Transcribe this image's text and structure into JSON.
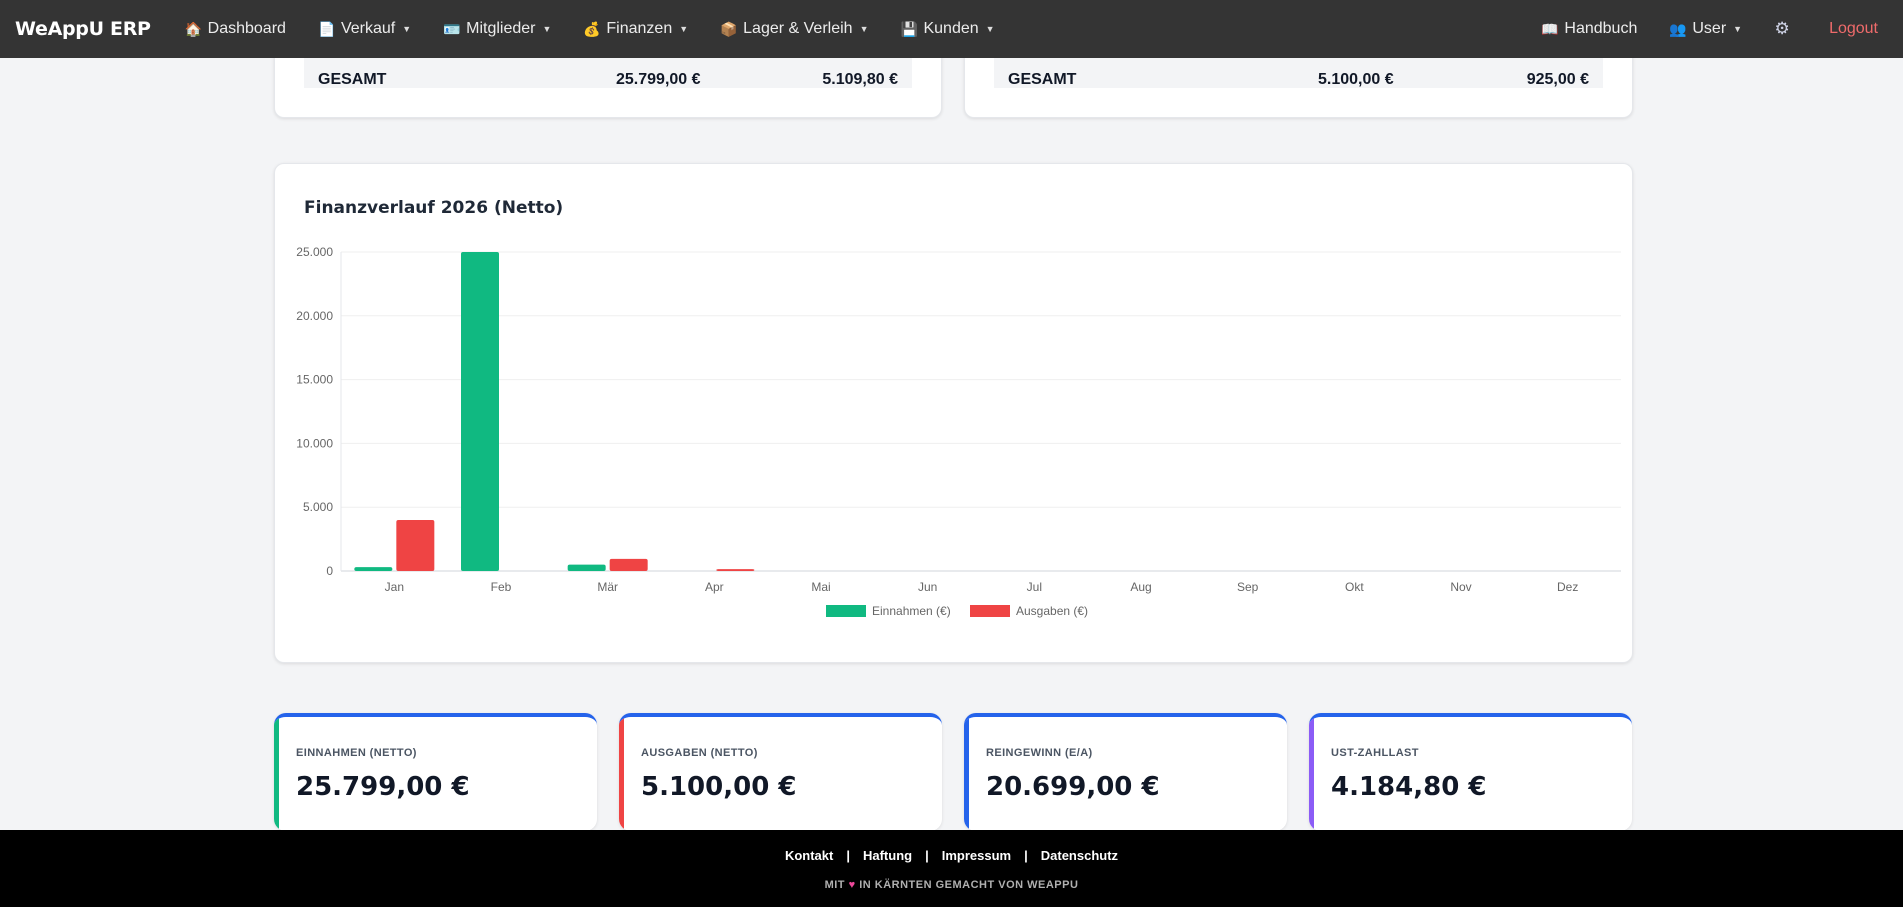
{
  "navbar": {
    "brand": "WeAppU ERP",
    "items": [
      {
        "icon": "home-icon",
        "glyph": "🏠",
        "label": "Dashboard",
        "dropdown": false
      },
      {
        "icon": "document-icon",
        "glyph": "📄",
        "label": "Verkauf",
        "dropdown": true
      },
      {
        "icon": "id-card-icon",
        "glyph": "🪪",
        "label": "Mitglieder",
        "dropdown": true
      },
      {
        "icon": "money-bag-icon",
        "glyph": "💰",
        "label": "Finanzen",
        "dropdown": true
      },
      {
        "icon": "package-icon",
        "glyph": "📦",
        "label": "Lager & Verleih",
        "dropdown": true
      },
      {
        "icon": "floppy-disk-icon",
        "glyph": "💾",
        "label": "Kunden",
        "dropdown": true
      }
    ],
    "handbuch": {
      "glyph": "📖",
      "label": "Handbuch"
    },
    "user": {
      "glyph": "👥",
      "label": "User"
    },
    "settings_glyph": "⚙",
    "logout": "Logout"
  },
  "top_cards": {
    "left": {
      "label": "GESAMT",
      "value1": "25.799,00 €",
      "value2": "5.109,80 €"
    },
    "right": {
      "label": "GESAMT",
      "value1": "5.100,00 €",
      "value2": "925,00 €"
    }
  },
  "chart_data": {
    "type": "bar",
    "title": "Finanzverlauf 2026 (Netto)",
    "categories": [
      "Jan",
      "Feb",
      "Mär",
      "Apr",
      "Mai",
      "Jun",
      "Jul",
      "Aug",
      "Sep",
      "Okt",
      "Nov",
      "Dez"
    ],
    "series": [
      {
        "name": "Einnahmen (€)",
        "color": "#10b981",
        "values": [
          300,
          25000,
          500,
          0,
          0,
          0,
          0,
          0,
          0,
          0,
          0,
          0
        ]
      },
      {
        "name": "Ausgaben (€)",
        "color": "#ef4444",
        "values": [
          4000,
          0,
          950,
          150,
          0,
          0,
          0,
          0,
          0,
          0,
          0,
          0
        ]
      }
    ],
    "yticks": [
      "0",
      "5.000",
      "10.000",
      "15.000",
      "20.000",
      "25.000"
    ],
    "ylim": [
      0,
      25000
    ],
    "legend_position": "bottom"
  },
  "stats": [
    {
      "label": "EINNAHMEN (NETTO)",
      "value": "25.799,00 €",
      "accent": "#10b981"
    },
    {
      "label": "AUSGABEN (NETTO)",
      "value": "5.100,00 €",
      "accent": "#ef4444"
    },
    {
      "label": "REINGEWINN (E/A)",
      "value": "20.699,00 €",
      "accent": "#2563eb"
    },
    {
      "label": "UST-ZAHLLAST",
      "value": "4.184,80 €",
      "accent": "#8b5cf6"
    }
  ],
  "footer": {
    "links": [
      "Kontakt",
      "Haftung",
      "Impressum",
      "Datenschutz"
    ],
    "separator": "|",
    "note_before": "MIT",
    "heart": "♥",
    "note_after": "IN KÄRNTEN GEMACHT VON WEAPPU"
  }
}
